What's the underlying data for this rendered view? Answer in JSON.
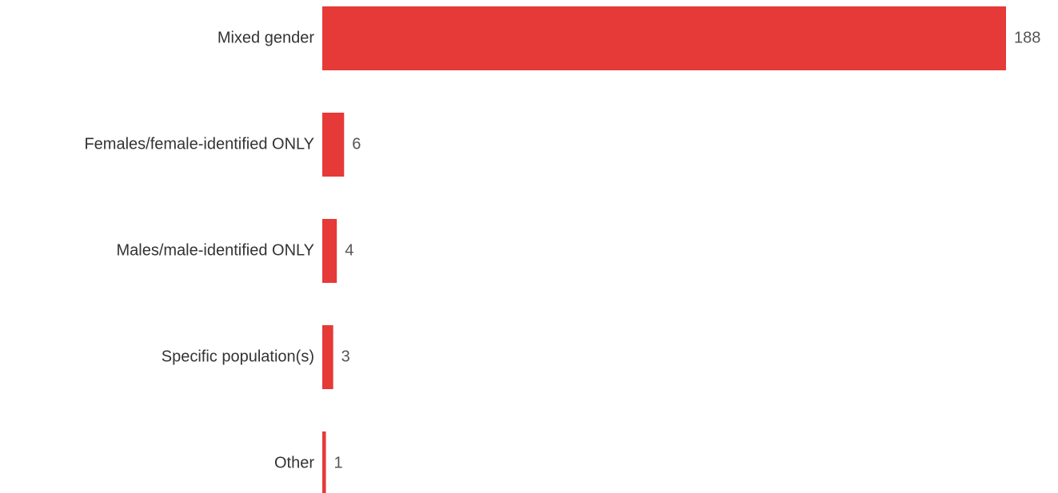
{
  "chart_data": {
    "type": "bar",
    "orientation": "horizontal",
    "categories": [
      "Mixed gender",
      "Females/female-identified ONLY",
      "Males/male-identified ONLY",
      "Specific population(s)",
      "Other"
    ],
    "values": [
      188,
      6,
      4,
      3,
      1
    ],
    "color": "#e53a37"
  }
}
